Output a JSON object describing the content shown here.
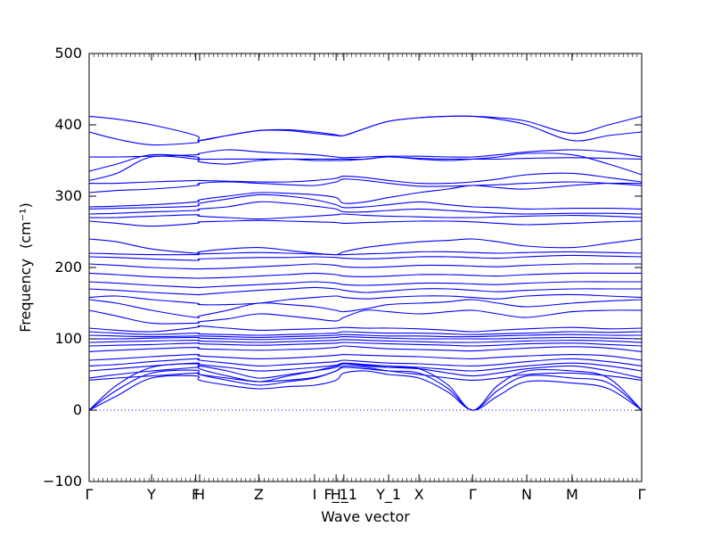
{
  "chart_data": {
    "type": "line",
    "title": "",
    "xlabel": "Wave vector",
    "ylabel": "Frequency",
    "ylabel_unit": "(cm⁻¹)",
    "ylim": [
      -100,
      500
    ],
    "yticks": [
      -100,
      0,
      100,
      200,
      300,
      400,
      500
    ],
    "zero_line": true,
    "grid": false,
    "band_color": "#0000ff",
    "xlim": [
      0,
      1.0
    ],
    "high_symmetry_points": [
      {
        "label": "Γ",
        "x": 0.0
      },
      {
        "label": "Y",
        "x": 0.113
      },
      {
        "label": "F",
        "x": 0.193
      },
      {
        "label": "H",
        "x": 0.2
      },
      {
        "label": "Z",
        "x": 0.307
      },
      {
        "label": "I",
        "x": 0.408
      },
      {
        "label": "F_1",
        "x": 0.447
      },
      {
        "label": "H_1",
        "x": 0.461
      },
      {
        "label": "Y_1",
        "x": 0.542
      },
      {
        "label": "X",
        "x": 0.597
      },
      {
        "label": "Γ",
        "x": 0.694
      },
      {
        "label": "N",
        "x": 0.792
      },
      {
        "label": "M",
        "x": 0.874
      },
      {
        "label": "Γ",
        "x": 1.0
      }
    ],
    "band_x": [
      0,
      0.05,
      0.113,
      0.193,
      0.2,
      0.25,
      0.307,
      0.36,
      0.408,
      0.447,
      0.461,
      0.5,
      0.542,
      0.597,
      0.65,
      0.694,
      0.74,
      0.792,
      0.874,
      0.94,
      1.0
    ],
    "series": [
      {
        "values": [
          0,
          20,
          45,
          48,
          42,
          35,
          30,
          33,
          35,
          42,
          52,
          55,
          50,
          45,
          25,
          0,
          20,
          40,
          38,
          30,
          0
        ]
      },
      {
        "values": [
          0,
          28,
          52,
          56,
          50,
          42,
          35,
          40,
          45,
          55,
          60,
          58,
          55,
          52,
          30,
          0,
          28,
          48,
          45,
          38,
          0
        ]
      },
      {
        "values": [
          0,
          35,
          60,
          65,
          58,
          48,
          40,
          48,
          55,
          62,
          65,
          62,
          60,
          58,
          35,
          0,
          35,
          55,
          55,
          45,
          0
        ]
      },
      {
        "values": [
          42,
          45,
          48,
          52,
          50,
          45,
          40,
          42,
          46,
          55,
          62,
          60,
          55,
          50,
          45,
          42,
          45,
          50,
          52,
          48,
          42
        ]
      },
      {
        "values": [
          45,
          50,
          55,
          60,
          62,
          55,
          45,
          50,
          55,
          60,
          65,
          63,
          60,
          58,
          52,
          48,
          52,
          58,
          62,
          55,
          45
        ]
      },
      {
        "values": [
          55,
          58,
          62,
          66,
          64,
          60,
          55,
          57,
          60,
          63,
          66,
          64,
          62,
          60,
          57,
          55,
          58,
          62,
          66,
          62,
          55
        ]
      },
      {
        "values": [
          62,
          64,
          68,
          72,
          70,
          66,
          62,
          64,
          66,
          68,
          70,
          68,
          66,
          65,
          63,
          62,
          64,
          68,
          72,
          68,
          62
        ]
      },
      {
        "values": [
          70,
          72,
          75,
          78,
          76,
          74,
          72,
          73,
          75,
          77,
          78,
          77,
          76,
          75,
          73,
          72,
          74,
          76,
          78,
          76,
          70
        ]
      },
      {
        "values": [
          82,
          84,
          86,
          88,
          86,
          85,
          84,
          85,
          86,
          88,
          90,
          88,
          86,
          85,
          84,
          83,
          85,
          87,
          89,
          87,
          82
        ]
      },
      {
        "values": [
          90,
          91,
          92,
          94,
          93,
          92,
          91,
          92,
          93,
          94,
          95,
          94,
          93,
          92,
          91,
          90,
          91,
          93,
          94,
          92,
          90
        ]
      },
      {
        "values": [
          95,
          96,
          97,
          98,
          97,
          96,
          95,
          96,
          97,
          98,
          99,
          98,
          97,
          96,
          95,
          95,
          96,
          97,
          98,
          97,
          95
        ]
      },
      {
        "values": [
          100,
          100,
          101,
          102,
          101,
          100,
          99,
          100,
          101,
          102,
          103,
          102,
          101,
          100,
          100,
          100,
          100,
          101,
          102,
          101,
          100
        ]
      },
      {
        "values": [
          105,
          104,
          103,
          104,
          104,
          103,
          102,
          103,
          104,
          105,
          106,
          105,
          104,
          104,
          103,
          103,
          104,
          105,
          106,
          105,
          105
        ]
      },
      {
        "values": [
          110,
          108,
          106,
          108,
          107,
          106,
          105,
          106,
          107,
          108,
          110,
          109,
          108,
          108,
          107,
          106,
          107,
          108,
          110,
          109,
          110
        ]
      },
      {
        "values": [
          115,
          112,
          110,
          116,
          118,
          115,
          112,
          113,
          114,
          115,
          116,
          115,
          115,
          114,
          112,
          110,
          112,
          114,
          116,
          114,
          115
        ]
      },
      {
        "values": [
          140,
          132,
          122,
          122,
          124,
          128,
          135,
          132,
          128,
          125,
          130,
          140,
          138,
          135,
          138,
          140,
          135,
          130,
          138,
          140,
          140
        ]
      },
      {
        "values": [
          155,
          150,
          140,
          130,
          132,
          140,
          150,
          148,
          145,
          140,
          138,
          142,
          148,
          150,
          152,
          155,
          150,
          145,
          150,
          153,
          155
        ]
      },
      {
        "values": [
          158,
          160,
          155,
          150,
          148,
          148,
          150,
          155,
          158,
          160,
          158,
          156,
          158,
          160,
          160,
          158,
          156,
          160,
          162,
          160,
          158
        ]
      },
      {
        "values": [
          170,
          168,
          165,
          162,
          162,
          165,
          168,
          170,
          172,
          170,
          168,
          165,
          167,
          170,
          170,
          168,
          166,
          168,
          170,
          170,
          170
        ]
      },
      {
        "values": [
          180,
          178,
          175,
          172,
          172,
          174,
          176,
          178,
          180,
          178,
          176,
          175,
          176,
          178,
          178,
          177,
          176,
          178,
          180,
          180,
          180
        ]
      },
      {
        "values": [
          192,
          190,
          187,
          185,
          185,
          186,
          188,
          190,
          192,
          190,
          188,
          187,
          188,
          190,
          190,
          189,
          188,
          190,
          192,
          192,
          192
        ]
      },
      {
        "values": [
          205,
          203,
          200,
          198,
          198,
          199,
          201,
          203,
          205,
          203,
          201,
          200,
          201,
          203,
          203,
          202,
          201,
          203,
          205,
          205,
          205
        ]
      },
      {
        "values": [
          215,
          214,
          212,
          210,
          212,
          213,
          214,
          214,
          215,
          214,
          213,
          212,
          213,
          215,
          215,
          214,
          213,
          215,
          217,
          216,
          215
        ]
      },
      {
        "values": [
          220,
          219,
          218,
          218,
          219,
          220,
          221,
          220,
          219,
          218,
          218,
          219,
          220,
          222,
          222,
          221,
          220,
          221,
          222,
          221,
          220
        ]
      },
      {
        "values": [
          240,
          236,
          226,
          220,
          222,
          226,
          228,
          224,
          220,
          218,
          222,
          228,
          232,
          236,
          238,
          240,
          236,
          230,
          228,
          234,
          240
        ]
      },
      {
        "values": [
          265,
          262,
          258,
          262,
          264,
          265,
          266,
          265,
          264,
          263,
          262,
          263,
          264,
          265,
          265,
          264,
          262,
          260,
          262,
          264,
          265
        ]
      },
      {
        "values": [
          270,
          270,
          272,
          274,
          272,
          270,
          268,
          270,
          272,
          274,
          275,
          273,
          272,
          271,
          270,
          270,
          271,
          272,
          273,
          272,
          270
        ]
      },
      {
        "values": [
          275,
          276,
          278,
          280,
          282,
          285,
          292,
          290,
          286,
          282,
          278,
          278,
          280,
          282,
          280,
          278,
          276,
          275,
          276,
          276,
          275
        ]
      },
      {
        "values": [
          282,
          283,
          284,
          286,
          290,
          296,
          302,
          300,
          295,
          288,
          284,
          285,
          288,
          292,
          288,
          285,
          284,
          282,
          283,
          283,
          282
        ]
      },
      {
        "values": [
          285,
          286,
          288,
          292,
          295,
          300,
          305,
          304,
          302,
          298,
          290,
          292,
          298,
          305,
          310,
          315,
          312,
          310,
          315,
          318,
          318
        ]
      },
      {
        "values": [
          305,
          308,
          310,
          315,
          318,
          320,
          318,
          316,
          315,
          320,
          324,
          322,
          318,
          314,
          314,
          315,
          316,
          318,
          320,
          318,
          315
        ]
      },
      {
        "values": [
          318,
          318,
          320,
          322,
          322,
          321,
          320,
          320,
          322,
          325,
          328,
          326,
          322,
          318,
          318,
          320,
          324,
          330,
          332,
          326,
          320
        ]
      },
      {
        "values": [
          322,
          332,
          355,
          352,
          348,
          345,
          350,
          352,
          350,
          350,
          350,
          352,
          355,
          352,
          350,
          352,
          355,
          360,
          358,
          345,
          330
        ]
      },
      {
        "values": [
          335,
          345,
          358,
          355,
          352,
          352,
          352,
          352,
          352,
          352,
          352,
          352,
          355,
          353,
          352,
          352,
          352,
          353,
          354,
          353,
          352
        ]
      },
      {
        "values": [
          355,
          355,
          356,
          358,
          360,
          365,
          362,
          360,
          358,
          355,
          354,
          355,
          356,
          356,
          355,
          355,
          358,
          362,
          365,
          362,
          355
        ]
      },
      {
        "values": [
          390,
          380,
          372,
          375,
          378,
          385,
          392,
          392,
          388,
          385,
          385,
          395,
          405,
          410,
          412,
          412,
          408,
          400,
          378,
          385,
          390
        ]
      },
      {
        "values": [
          412,
          408,
          400,
          385,
          378,
          385,
          392,
          393,
          390,
          386,
          385,
          395,
          405,
          410,
          412,
          412,
          410,
          405,
          388,
          400,
          412
        ]
      }
    ]
  }
}
